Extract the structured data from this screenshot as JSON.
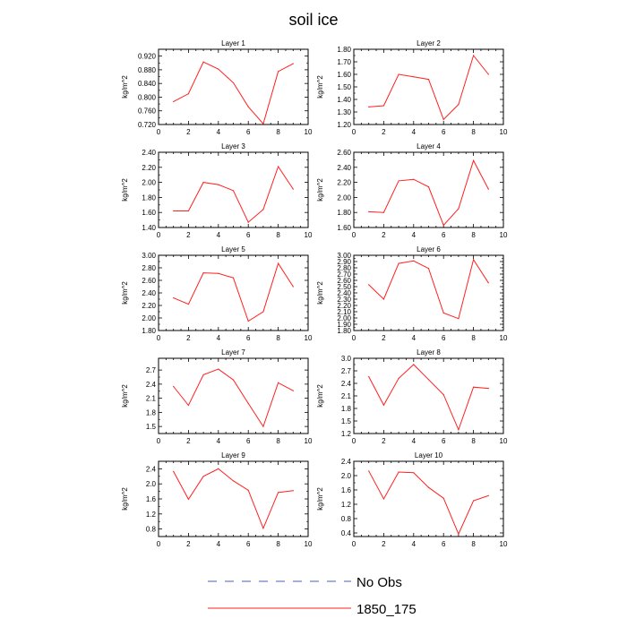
{
  "title": "soil ice",
  "legend": {
    "position": "bottom-center",
    "entries": [
      {
        "label": "No Obs",
        "style": "dashed",
        "color": "#4a5fb5"
      },
      {
        "label": "1850_175",
        "style": "solid",
        "color": "#ff2020"
      }
    ]
  },
  "chart_data": [
    {
      "type": "line",
      "title": "Layer 1",
      "ylabel": "kg/m^2",
      "xlim": [
        0,
        10
      ],
      "xticks": [
        0,
        2,
        4,
        6,
        8,
        10
      ],
      "ylim": [
        0.72,
        0.94
      ],
      "yticks": [
        0.72,
        0.76,
        0.8,
        0.84,
        0.88,
        0.92
      ],
      "ytick_labels": [
        "0.720",
        "0.760",
        "0.800",
        "0.840",
        "0.880",
        "0.920"
      ],
      "x": [
        1,
        2,
        3,
        4,
        5,
        6,
        7,
        8,
        9
      ],
      "series": [
        {
          "name": "1850_175",
          "color": "#ff2020",
          "values": [
            0.787,
            0.81,
            0.903,
            0.882,
            0.842,
            0.772,
            0.722,
            0.875,
            0.898
          ]
        }
      ]
    },
    {
      "type": "line",
      "title": "Layer 2",
      "ylabel": "kg/m^2",
      "xlim": [
        0,
        10
      ],
      "xticks": [
        0,
        2,
        4,
        6,
        8,
        10
      ],
      "ylim": [
        1.2,
        1.8
      ],
      "yticks": [
        1.2,
        1.3,
        1.4,
        1.5,
        1.6,
        1.7,
        1.8
      ],
      "ytick_labels": [
        "1.20",
        "1.30",
        "1.40",
        "1.50",
        "1.60",
        "1.70",
        "1.80"
      ],
      "x": [
        1,
        2,
        3,
        4,
        5,
        6,
        7,
        8,
        9
      ],
      "series": [
        {
          "name": "1850_175",
          "color": "#ff2020",
          "values": [
            1.34,
            1.35,
            1.6,
            1.58,
            1.56,
            1.24,
            1.36,
            1.75,
            1.6
          ]
        }
      ]
    },
    {
      "type": "line",
      "title": "Layer 3",
      "ylabel": "kg/m^2",
      "xlim": [
        0,
        10
      ],
      "xticks": [
        0,
        2,
        4,
        6,
        8,
        10
      ],
      "ylim": [
        1.4,
        2.4
      ],
      "yticks": [
        1.4,
        1.6,
        1.8,
        2.0,
        2.2,
        2.4
      ],
      "ytick_labels": [
        "1.40",
        "1.60",
        "1.80",
        "2.00",
        "2.20",
        "2.40"
      ],
      "x": [
        1,
        2,
        3,
        4,
        5,
        6,
        7,
        8,
        9
      ],
      "series": [
        {
          "name": "1850_175",
          "color": "#ff2020",
          "values": [
            1.62,
            1.62,
            2.0,
            1.97,
            1.89,
            1.47,
            1.64,
            2.21,
            1.91
          ]
        }
      ]
    },
    {
      "type": "line",
      "title": "Layer 4",
      "ylabel": "kg/m^2",
      "xlim": [
        0,
        10
      ],
      "xticks": [
        0,
        2,
        4,
        6,
        8,
        10
      ],
      "ylim": [
        1.6,
        2.6
      ],
      "yticks": [
        1.6,
        1.8,
        2.0,
        2.2,
        2.4,
        2.6
      ],
      "ytick_labels": [
        "1.60",
        "1.80",
        "2.00",
        "2.20",
        "2.40",
        "2.60"
      ],
      "x": [
        1,
        2,
        3,
        4,
        5,
        6,
        7,
        8,
        9
      ],
      "series": [
        {
          "name": "1850_175",
          "color": "#ff2020",
          "values": [
            1.81,
            1.8,
            2.22,
            2.24,
            2.14,
            1.63,
            1.85,
            2.49,
            2.11
          ]
        }
      ]
    },
    {
      "type": "line",
      "title": "Layer 5",
      "ylabel": "kg/m^2",
      "xlim": [
        0,
        10
      ],
      "xticks": [
        0,
        2,
        4,
        6,
        8,
        10
      ],
      "ylim": [
        1.8,
        3.0
      ],
      "yticks": [
        1.8,
        2.0,
        2.2,
        2.4,
        2.6,
        2.8,
        3.0
      ],
      "ytick_labels": [
        "1.80",
        "2.00",
        "2.20",
        "2.40",
        "2.60",
        "2.80",
        "3.00"
      ],
      "x": [
        1,
        2,
        3,
        4,
        5,
        6,
        7,
        8,
        9
      ],
      "series": [
        {
          "name": "1850_175",
          "color": "#ff2020",
          "values": [
            2.32,
            2.22,
            2.72,
            2.71,
            2.64,
            1.95,
            2.1,
            2.87,
            2.5
          ]
        }
      ]
    },
    {
      "type": "line",
      "title": "Layer 6",
      "ylabel": "kg/m^2",
      "xlim": [
        0,
        10
      ],
      "xticks": [
        0,
        2,
        4,
        6,
        8,
        10
      ],
      "ylim": [
        1.8,
        3.0
      ],
      "yticks": [
        1.8,
        1.9,
        2.0,
        2.1,
        2.2,
        2.3,
        2.4,
        2.5,
        2.6,
        2.7,
        2.8,
        2.9,
        3.0
      ],
      "ytick_labels": [
        "1.80",
        "1.90",
        "2.00",
        "2.10",
        "2.20",
        "2.30",
        "2.40",
        "2.50",
        "2.60",
        "2.70",
        "2.80",
        "2.90",
        "3.00"
      ],
      "x": [
        1,
        2,
        3,
        4,
        5,
        6,
        7,
        8,
        9
      ],
      "series": [
        {
          "name": "1850_175",
          "color": "#ff2020",
          "values": [
            2.53,
            2.3,
            2.87,
            2.91,
            2.79,
            2.08,
            1.99,
            2.93,
            2.56
          ]
        }
      ]
    },
    {
      "type": "line",
      "title": "Layer 7",
      "ylabel": "kg/m^2",
      "xlim": [
        0,
        10
      ],
      "xticks": [
        0,
        2,
        4,
        6,
        8,
        10
      ],
      "ylim": [
        1.35,
        2.95
      ],
      "yticks": [
        1.5,
        1.8,
        2.1,
        2.4,
        2.7
      ],
      "ytick_labels": [
        "1.5",
        "1.8",
        "2.1",
        "2.4",
        "2.7"
      ],
      "x": [
        1,
        2,
        3,
        4,
        5,
        6,
        7,
        8,
        9
      ],
      "series": [
        {
          "name": "1850_175",
          "color": "#ff2020",
          "values": [
            2.35,
            1.95,
            2.6,
            2.72,
            2.49,
            1.99,
            1.5,
            2.43,
            2.26
          ]
        }
      ]
    },
    {
      "type": "line",
      "title": "Layer 8",
      "ylabel": "kg/m^2",
      "xlim": [
        0,
        10
      ],
      "xticks": [
        0,
        2,
        4,
        6,
        8,
        10
      ],
      "ylim": [
        1.2,
        3.0
      ],
      "yticks": [
        1.2,
        1.5,
        1.8,
        2.1,
        2.4,
        2.7,
        3.0
      ],
      "ytick_labels": [
        "1.2",
        "1.5",
        "1.8",
        "2.1",
        "2.4",
        "2.7",
        "3.0"
      ],
      "x": [
        1,
        2,
        3,
        4,
        5,
        6,
        7,
        8,
        9
      ],
      "series": [
        {
          "name": "1850_175",
          "color": "#ff2020",
          "values": [
            2.56,
            1.88,
            2.52,
            2.85,
            2.49,
            2.13,
            1.29,
            2.31,
            2.28
          ]
        }
      ]
    },
    {
      "type": "line",
      "title": "Layer 9",
      "ylabel": "kg/m^2",
      "xlim": [
        0,
        10
      ],
      "xticks": [
        0,
        2,
        4,
        6,
        8,
        10
      ],
      "ylim": [
        0.6,
        2.6
      ],
      "yticks": [
        0.8,
        1.2,
        1.6,
        2.0,
        2.4
      ],
      "ytick_labels": [
        "0.8",
        "1.2",
        "1.6",
        "2.0",
        "2.4"
      ],
      "x": [
        1,
        2,
        3,
        4,
        5,
        6,
        7,
        8,
        9
      ],
      "series": [
        {
          "name": "1850_175",
          "color": "#ff2020",
          "values": [
            2.33,
            1.59,
            2.2,
            2.4,
            2.08,
            1.83,
            0.82,
            1.77,
            1.82
          ]
        }
      ]
    },
    {
      "type": "line",
      "title": "Layer 10",
      "ylabel": "kg/m^2",
      "xlim": [
        0,
        10
      ],
      "xticks": [
        0,
        2,
        4,
        6,
        8,
        10
      ],
      "ylim": [
        0.3,
        2.4
      ],
      "yticks": [
        0.4,
        0.8,
        1.2,
        1.6,
        2.0,
        2.4
      ],
      "ytick_labels": [
        "0.4",
        "0.8",
        "1.2",
        "1.6",
        "2.0",
        "2.4"
      ],
      "x": [
        1,
        2,
        3,
        4,
        5,
        6,
        7,
        8,
        9
      ],
      "series": [
        {
          "name": "1850_175",
          "color": "#ff2020",
          "values": [
            2.13,
            1.35,
            2.1,
            2.08,
            1.67,
            1.37,
            0.37,
            1.3,
            1.44
          ]
        }
      ]
    }
  ]
}
